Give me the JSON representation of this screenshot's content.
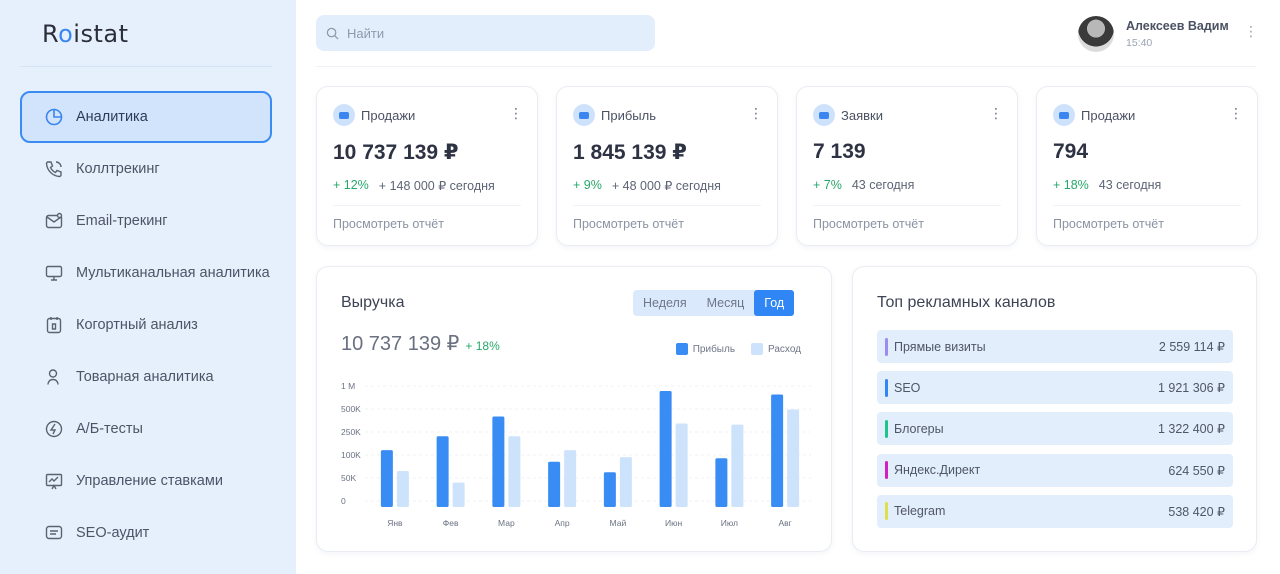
{
  "app": {
    "logo": "Roistat"
  },
  "sidebar": {
    "items": [
      {
        "label": "Аналитика",
        "icon": "pie-chart-icon",
        "active": true
      },
      {
        "label": "Коллтрекинг",
        "icon": "phone-icon"
      },
      {
        "label": "Email-трекинг",
        "icon": "mail-icon"
      },
      {
        "label": "Мультиканальная аналитика",
        "icon": "monitor-icon"
      },
      {
        "label": "Когортный анализ",
        "icon": "calendar-icon"
      },
      {
        "label": "Товарная аналитика",
        "icon": "user-icon"
      },
      {
        "label": "А/Б-тесты",
        "icon": "ab-test-icon"
      },
      {
        "label": "Управление ставками",
        "icon": "presentation-icon"
      },
      {
        "label": "SEO-аудит",
        "icon": "chat-icon"
      }
    ]
  },
  "search": {
    "placeholder": "Найти"
  },
  "user": {
    "name": "Алексеев Вадим",
    "time": "15:40"
  },
  "cards": [
    {
      "title": "Продажи",
      "value": "10 737 139 ₽",
      "delta": "+ 12%",
      "today": "+ 148 000 ₽ сегодня",
      "link": "Просмотреть отчёт"
    },
    {
      "title": "Прибыль",
      "value": "1 845 139 ₽",
      "delta": "+ 9%",
      "today": "+ 48 000 ₽ сегодня",
      "link": "Просмотреть отчёт"
    },
    {
      "title": "Заявки",
      "value": "7 139",
      "delta": "+ 7%",
      "today": "43 сегодня",
      "link": "Просмотреть отчёт"
    },
    {
      "title": "Продажи",
      "value": "794",
      "delta": "+ 18%",
      "today": "43 сегодня",
      "link": "Просмотреть отчёт"
    }
  ],
  "revenue": {
    "title": "Выручка",
    "value": "10 737 139 ₽",
    "delta": "+ 18%",
    "periods": [
      "Неделя",
      "Месяц",
      "Год"
    ],
    "active_period": "Год"
  },
  "colors": {
    "accent": "#2f86f4",
    "profit": "#3a8cf5",
    "expense": "#cde2fb",
    "positive": "#27a86b"
  },
  "chart_data": {
    "type": "bar",
    "categories": [
      "Янв",
      "Фев",
      "Мар",
      "Апр",
      "Май",
      "Июн",
      "Июл",
      "Авг"
    ],
    "yticks": [
      "1 М",
      "500K",
      "250K",
      "100K",
      "50K",
      "0"
    ],
    "series": [
      {
        "name": "Прибыль",
        "values": [
          0.49,
          0.61,
          0.78,
          0.39,
          0.3,
          1.0,
          0.42,
          0.97
        ]
      },
      {
        "name": "Расход",
        "values": [
          0.31,
          0.21,
          0.61,
          0.49,
          0.43,
          0.72,
          0.71,
          0.84
        ]
      }
    ],
    "grid": true,
    "legend": "top-right"
  },
  "ads": {
    "title": "Топ рекламных каналов",
    "items": [
      {
        "name": "Прямые визиты",
        "value": "2 559 114 ₽",
        "color": "#9c8cf0"
      },
      {
        "name": "SEO",
        "value": "1 921 306 ₽",
        "color": "#2f86f4"
      },
      {
        "name": "Блогеры",
        "value": "1 322 400 ₽",
        "color": "#1fc48c"
      },
      {
        "name": "Яндекс.Директ",
        "value": "624 550 ₽",
        "color": "#d21ec4"
      },
      {
        "name": "Telegram",
        "value": "538 420 ₽",
        "color": "#dde04a"
      }
    ]
  }
}
